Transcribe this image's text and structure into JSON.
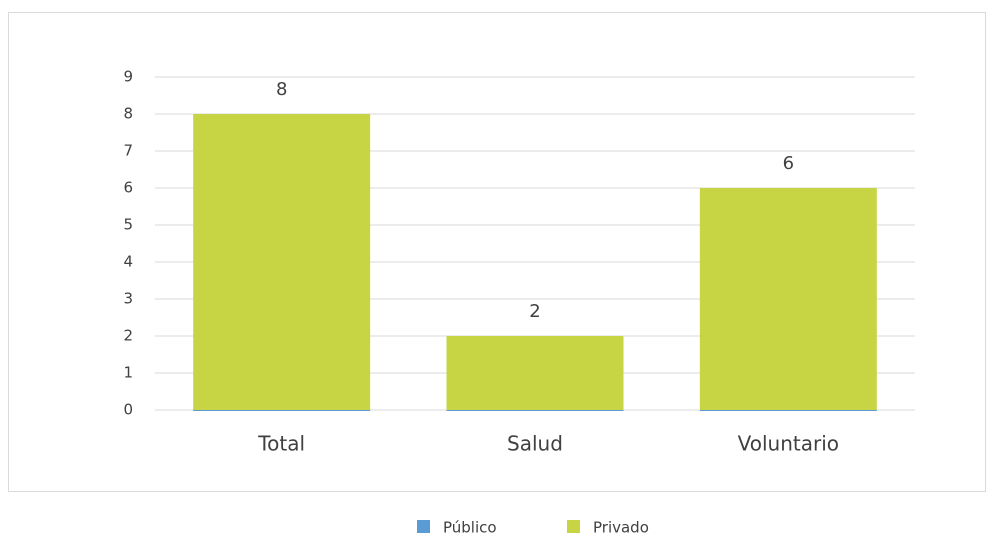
{
  "chart_data": {
    "type": "stacked_bar",
    "categories": [
      "Total",
      "Salud",
      "Voluntario"
    ],
    "series": [
      {
        "name": "Público",
        "color": "#5b9bd5",
        "values": [
          0,
          0,
          0
        ]
      },
      {
        "name": "Privado",
        "color": "#c7d444",
        "values": [
          8,
          2,
          6
        ]
      }
    ],
    "ylim": [
      0,
      9
    ],
    "yticks": [
      0,
      1,
      2,
      3,
      4,
      5,
      6,
      7,
      8,
      9
    ],
    "grid": true,
    "legend": "bottom"
  }
}
